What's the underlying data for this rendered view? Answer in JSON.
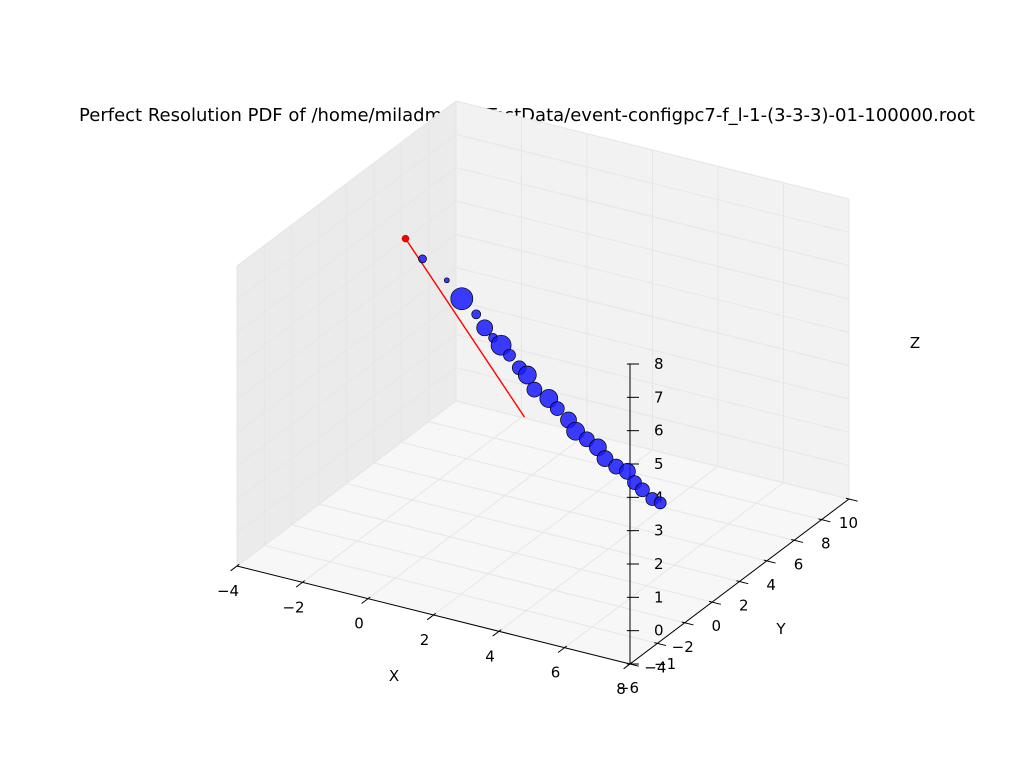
{
  "chart_data": {
    "type": "scatter",
    "projection": "3d",
    "title": "Perfect Resolution PDF of /home/miladmalek/TestData/event-configpc7-f_l-1-(3-3-3)-01-100000.root",
    "xlabel": "X",
    "ylabel": "Y",
    "zlabel": "Z",
    "xlim": [
      -4,
      8
    ],
    "ylim": [
      -6,
      10
    ],
    "zlim": [
      -1,
      8
    ],
    "x_ticks": [
      -4,
      -2,
      0,
      2,
      4,
      6,
      8
    ],
    "y_ticks": [
      -6,
      -4,
      -2,
      0,
      2,
      4,
      6,
      8,
      10
    ],
    "z_ticks": [
      -1,
      0,
      1,
      2,
      3,
      4,
      5,
      6,
      7,
      8
    ],
    "x_tick_labels": [
      "−4",
      "−2",
      "0",
      "2",
      "4",
      "6",
      "8"
    ],
    "y_tick_labels": [
      "−6",
      "−4",
      "−2",
      "0",
      "2",
      "4",
      "6",
      "8",
      "10"
    ],
    "z_tick_labels": [
      "−1",
      "0",
      "1",
      "2",
      "3",
      "4",
      "5",
      "6",
      "7",
      "8"
    ],
    "grid": true,
    "colors": {
      "points": "#1a1aff",
      "point_edge": "#000000",
      "track": "#ff0000",
      "pane_left": "#ebebeb",
      "pane_back": "#f2f2f2",
      "pane_floor": "#f7f7f7",
      "grid": "#e6e6e6"
    },
    "series": [
      {
        "kind": "track",
        "points": [
          {
            "x": -3.2,
            "y": 4.4,
            "z": 5.8
          },
          {
            "x": 0.6,
            "y": 4.0,
            "z": 1.5
          }
        ]
      },
      {
        "kind": "hits",
        "points": [
          {
            "x": -2.6,
            "y": 4.2,
            "z": 5.4,
            "size": 8
          },
          {
            "x": -1.9,
            "y": 4.3,
            "z": 4.9,
            "size": 5
          },
          {
            "x": -1.4,
            "y": 4.2,
            "z": 4.5,
            "size": 22
          },
          {
            "x": -1.0,
            "y": 4.3,
            "z": 4.1,
            "size": 9
          },
          {
            "x": -0.7,
            "y": 4.2,
            "z": 3.8,
            "size": 16
          },
          {
            "x": -0.4,
            "y": 4.1,
            "z": 3.6,
            "size": 9
          },
          {
            "x": -0.2,
            "y": 4.2,
            "z": 3.4,
            "size": 20
          },
          {
            "x": 0.1,
            "y": 4.1,
            "z": 3.2,
            "size": 12
          },
          {
            "x": 0.4,
            "y": 4.1,
            "z": 2.9,
            "size": 14
          },
          {
            "x": 0.6,
            "y": 4.2,
            "z": 2.7,
            "size": 18
          },
          {
            "x": 0.9,
            "y": 4.0,
            "z": 2.4,
            "size": 15
          },
          {
            "x": 1.3,
            "y": 4.1,
            "z": 2.2,
            "size": 18
          },
          {
            "x": 1.6,
            "y": 4.0,
            "z": 2.0,
            "size": 14
          },
          {
            "x": 1.9,
            "y": 4.1,
            "z": 1.7,
            "size": 16
          },
          {
            "x": 2.2,
            "y": 3.9,
            "z": 1.5,
            "size": 18
          },
          {
            "x": 2.5,
            "y": 4.0,
            "z": 1.3,
            "size": 15
          },
          {
            "x": 2.8,
            "y": 4.1,
            "z": 1.1,
            "size": 17
          },
          {
            "x": 3.1,
            "y": 3.9,
            "z": 0.9,
            "size": 16
          },
          {
            "x": 3.4,
            "y": 4.0,
            "z": 0.7,
            "size": 15
          },
          {
            "x": 3.7,
            "y": 4.1,
            "z": 0.6,
            "size": 16
          },
          {
            "x": 4.0,
            "y": 3.9,
            "z": 0.4,
            "size": 14
          },
          {
            "x": 4.2,
            "y": 4.0,
            "z": 0.2,
            "size": 14
          },
          {
            "x": 4.5,
            "y": 4.0,
            "z": 0.0,
            "size": 13
          },
          {
            "x": 4.7,
            "y": 4.1,
            "z": -0.1,
            "size": 12
          }
        ]
      }
    ]
  }
}
